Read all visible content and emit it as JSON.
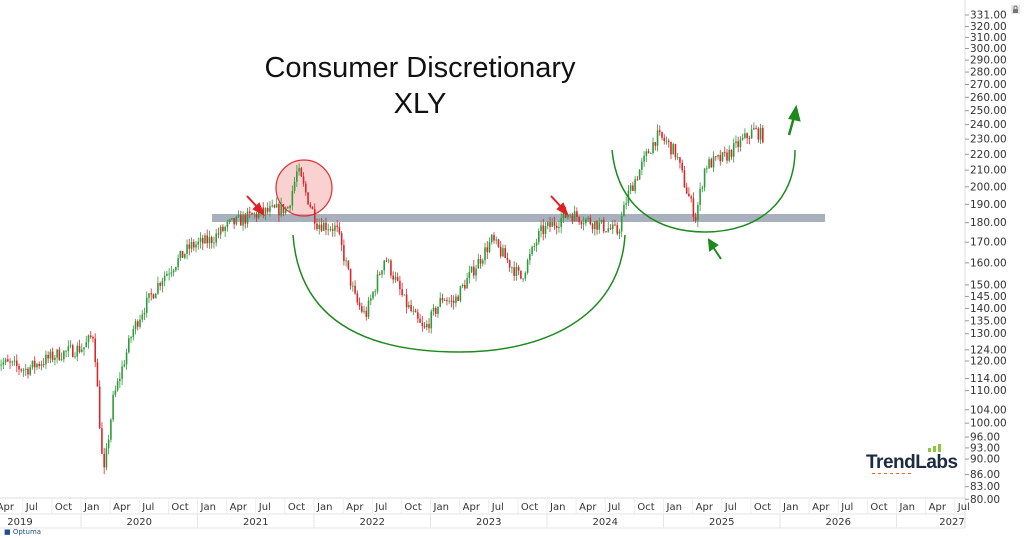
{
  "title": {
    "line1": "Consumer Discretionary",
    "line2": "XLY"
  },
  "branding": {
    "logo": "TrendLabs",
    "platform": "Optuma"
  },
  "icons": {
    "lock": "lock-icon"
  },
  "colors": {
    "up": "#2e9b3a",
    "down": "#d9262b",
    "arc": "#1e8a1e",
    "band": "#a9b0bd",
    "highlight": "#f08c8c"
  },
  "chart_data": {
    "type": "candlestick",
    "title": "Consumer Discretionary XLY",
    "y_scale": "log",
    "ylim": [
      80,
      331
    ],
    "y_ticks": [
      331,
      320,
      310,
      300,
      290,
      280,
      270,
      260,
      250,
      240,
      230,
      220,
      210,
      200,
      190,
      180,
      170,
      160,
      150,
      145,
      140,
      135,
      130,
      124,
      120,
      114,
      110,
      104,
      100,
      96,
      93,
      90,
      86,
      83,
      80
    ],
    "x_range": [
      "2019-04",
      "2027-07"
    ],
    "month_labels": [
      "Apr",
      "Jul",
      "Oct",
      "Jan",
      "Apr",
      "Jul",
      "Oct",
      "Jan",
      "Apr",
      "Jul",
      "Oct",
      "Jan",
      "Apr",
      "Jul",
      "Oct",
      "Jan",
      "Apr",
      "Jul",
      "Oct",
      "Jan",
      "Apr",
      "Jul",
      "Oct",
      "Jan",
      "Apr",
      "Jul",
      "Oct",
      "Jan",
      "Apr",
      "Jul",
      "Oct",
      "Jan",
      "Apr",
      "Jul"
    ],
    "year_labels": [
      "2019",
      "2020",
      "2021",
      "2022",
      "2023",
      "2024",
      "2025",
      "2026",
      "2027"
    ],
    "series": [
      [
        "2019-04",
        120
      ],
      [
        "2019-07",
        117
      ],
      [
        "2019-10",
        122
      ],
      [
        "2020-01",
        125
      ],
      [
        "2020-02",
        130
      ],
      [
        "2020-03",
        85
      ],
      [
        "2020-04",
        107
      ],
      [
        "2020-06",
        131
      ],
      [
        "2020-07",
        139
      ],
      [
        "2020-09",
        153
      ],
      [
        "2020-12",
        168
      ],
      [
        "2021-02",
        171
      ],
      [
        "2021-04",
        179
      ],
      [
        "2021-07",
        185
      ],
      [
        "2021-10",
        188
      ],
      [
        "2021-11",
        210
      ],
      [
        "2021-12",
        194
      ],
      [
        "2022-01",
        180
      ],
      [
        "2022-03",
        177
      ],
      [
        "2022-05",
        143
      ],
      [
        "2022-06",
        137
      ],
      [
        "2022-08",
        163
      ],
      [
        "2022-10",
        143
      ],
      [
        "2022-12",
        131
      ],
      [
        "2023-02",
        145
      ],
      [
        "2023-03",
        142
      ],
      [
        "2023-04",
        149
      ],
      [
        "2023-07",
        171
      ],
      [
        "2023-10",
        153
      ],
      [
        "2023-12",
        175
      ],
      [
        "2024-03",
        185
      ],
      [
        "2024-06",
        179
      ],
      [
        "2024-08",
        175
      ],
      [
        "2024-09",
        195
      ],
      [
        "2024-11",
        220
      ],
      [
        "2024-12",
        232
      ],
      [
        "2025-01",
        228
      ],
      [
        "2025-02",
        220
      ],
      [
        "2025-03",
        199
      ],
      [
        "2025-04",
        183
      ],
      [
        "2025-05",
        213
      ],
      [
        "2025-07",
        218
      ],
      [
        "2025-09",
        230
      ],
      [
        "2025-10",
        236
      ],
      [
        "2025-11",
        232
      ]
    ],
    "annotations": {
      "support_level": 182,
      "circled_peak": "2021-11",
      "pointer_arrows": [
        "2021-07",
        "2024-02"
      ]
    }
  }
}
